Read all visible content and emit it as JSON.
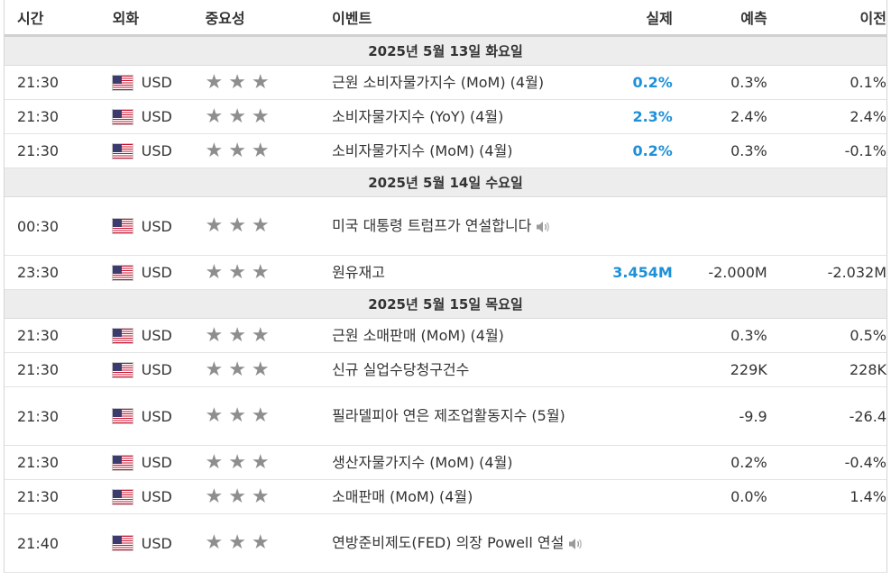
{
  "header": {
    "time": "시간",
    "currency": "외화",
    "importance": "중요성",
    "event": "이벤트",
    "actual": "실제",
    "forecast": "예측",
    "previous": "이전"
  },
  "days": [
    {
      "label": "2025년 5월 13일 화요일",
      "events": [
        {
          "time": "21:30",
          "currency": "USD",
          "event": "근원 소비자물가지수 (MoM) (4월)",
          "actual": "0.2%",
          "forecast": "0.3%",
          "previous": "0.1%",
          "speech": false
        },
        {
          "time": "21:30",
          "currency": "USD",
          "event": "소비자물가지수 (YoY) (4월)",
          "actual": "2.3%",
          "forecast": "2.4%",
          "previous": "2.4%",
          "speech": false
        },
        {
          "time": "21:30",
          "currency": "USD",
          "event": "소비자물가지수 (MoM) (4월)",
          "actual": "0.2%",
          "forecast": "0.3%",
          "previous": "-0.1%",
          "speech": false
        }
      ]
    },
    {
      "label": "2025년 5월 14일 수요일",
      "events": [
        {
          "time": "00:30",
          "currency": "USD",
          "event": "미국 대통령 트럼프가 연설합니다",
          "actual": "",
          "forecast": "",
          "previous": "",
          "speech": true,
          "tall": true
        },
        {
          "time": "23:30",
          "currency": "USD",
          "event": "원유재고",
          "actual": "3.454M",
          "forecast": "-2.000M",
          "previous": "-2.032M",
          "speech": false
        }
      ]
    },
    {
      "label": "2025년 5월 15일 목요일",
      "events": [
        {
          "time": "21:30",
          "currency": "USD",
          "event": "근원 소매판매 (MoM) (4월)",
          "actual": "",
          "forecast": "0.3%",
          "previous": "0.5%",
          "speech": false
        },
        {
          "time": "21:30",
          "currency": "USD",
          "event": "신규 실업수당청구건수",
          "actual": "",
          "forecast": "229K",
          "previous": "228K",
          "speech": false
        },
        {
          "time": "21:30",
          "currency": "USD",
          "event": "필라델피아 연은 제조업활동지수 (5월)",
          "actual": "",
          "forecast": "-9.9",
          "previous": "-26.4",
          "speech": false,
          "tall": true
        },
        {
          "time": "21:30",
          "currency": "USD",
          "event": "생산자물가지수 (MoM) (4월)",
          "actual": "",
          "forecast": "0.2%",
          "previous": "-0.4%",
          "speech": false
        },
        {
          "time": "21:30",
          "currency": "USD",
          "event": "소매판매 (MoM) (4월)",
          "actual": "",
          "forecast": "0.0%",
          "previous": "1.4%",
          "speech": false
        },
        {
          "time": "21:40",
          "currency": "USD",
          "event": "연방준비제도(FED) 의장 Powell 연설",
          "actual": "",
          "forecast": "",
          "previous": "",
          "speech": true,
          "tall": true
        }
      ]
    }
  ],
  "icons": {
    "flag": "us-flag-icon",
    "importance": "star-icon",
    "speech": "speaker-icon"
  },
  "colors": {
    "actual": "#1e90d8",
    "stars": "#8e8e8e",
    "day_row": "#ededed"
  }
}
